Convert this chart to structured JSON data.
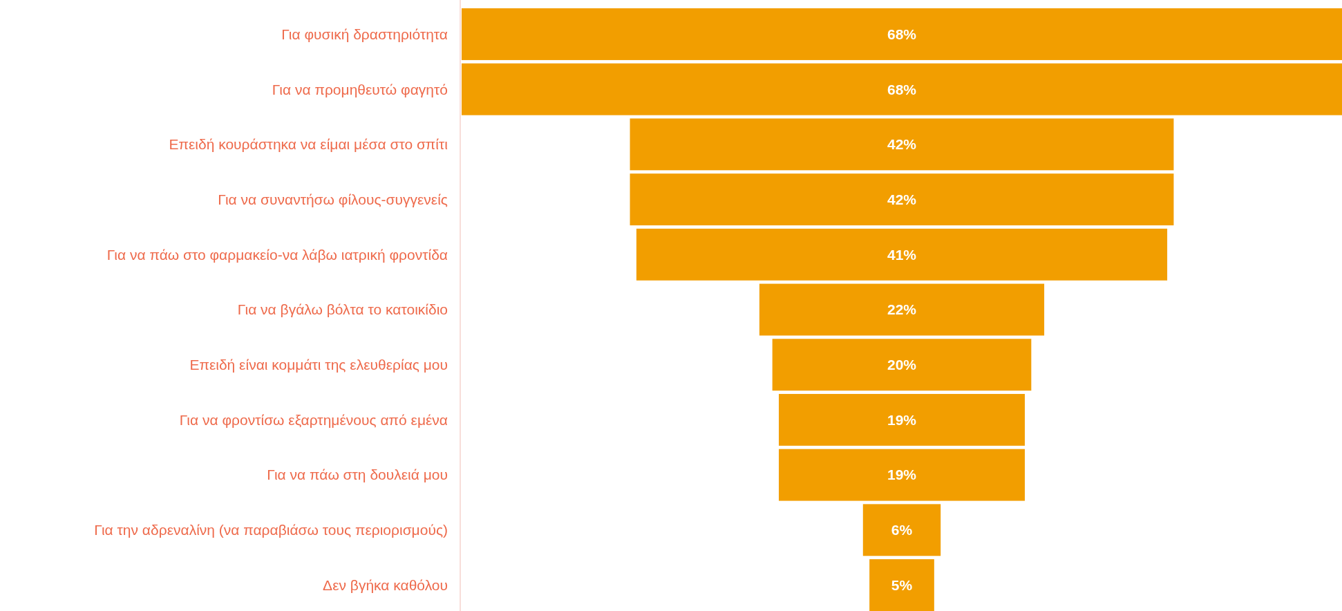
{
  "chart_data": {
    "type": "other",
    "categories": [
      "Για φυσική δραστηριότητα",
      "Για να προμηθευτώ φαγητό",
      "Επειδή κουράστηκα να είμαι μέσα στο σπίτι",
      "Για να συναντήσω φίλους-συγγενείς",
      "Για να πάω στο φαρμακείο-να λάβω ιατρική φροντίδα",
      "Για να βγάλω βόλτα το κατοικίδιο",
      "Επειδή είναι κομμάτι της ελευθερίας μου",
      "Για να φροντίσω εξαρτημένους από εμένα",
      "Για να πάω στη δουλειά μου",
      "Για την αδρεναλίνη (να παραβιάσω τους περιορισμούς)",
      "Δεν βγήκα καθόλου"
    ],
    "values": [
      68,
      68,
      42,
      42,
      41,
      22,
      20,
      19,
      19,
      6,
      5
    ],
    "value_labels": [
      "68%",
      "68%",
      "42%",
      "42%",
      "41%",
      "22%",
      "20%",
      "19%",
      "19%",
      "6%",
      "5%"
    ],
    "color": "#f29e00"
  }
}
